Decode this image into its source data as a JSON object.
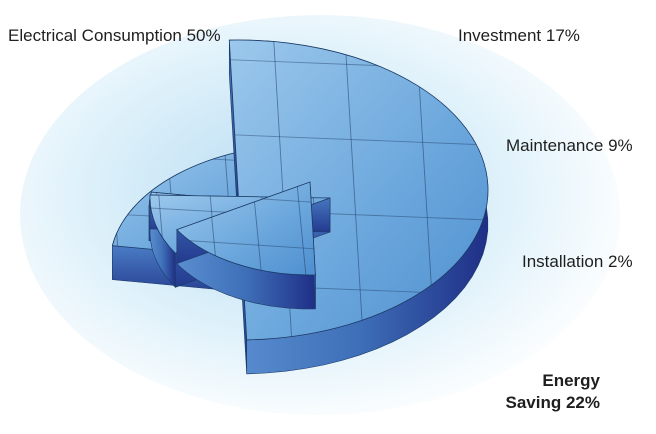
{
  "chart_data": {
    "type": "pie",
    "style": "3d-exploded",
    "categories": [
      "Electrical Consumption",
      "Investment",
      "Maintenance",
      "Installation",
      "Energy Saving"
    ],
    "values": [
      50,
      17,
      9,
      2,
      22
    ],
    "labels": [
      "Electrical Consumption 50%",
      "Investment 17%",
      "Maintenance 9%",
      "Installation 2%",
      "Energy Saving 22%"
    ],
    "label_lines": {
      "energy_saving": [
        "Energy",
        "Saving 22%"
      ]
    },
    "title": "",
    "legend": "none",
    "colors": {
      "slice_top": "#6aa6dc",
      "slice_top_light": "#9cc8ec",
      "slice_side": "#3e6fb8",
      "slice_side_dark": "#1f2f86",
      "outline": "#1c3a66",
      "sky": "#d6ecf8"
    }
  }
}
